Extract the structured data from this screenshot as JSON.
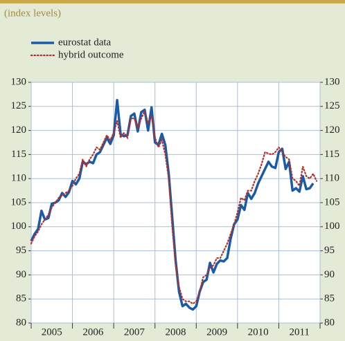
{
  "chart_data": {
    "type": "line",
    "subtitle": "(index levels)",
    "x": [
      2005,
      2005.083,
      2005.167,
      2005.25,
      2005.333,
      2005.417,
      2005.5,
      2005.583,
      2005.667,
      2005.75,
      2005.833,
      2005.917,
      2006,
      2006.083,
      2006.167,
      2006.25,
      2006.333,
      2006.417,
      2006.5,
      2006.583,
      2006.667,
      2006.75,
      2006.833,
      2006.917,
      2007,
      2007.083,
      2007.167,
      2007.25,
      2007.333,
      2007.417,
      2007.5,
      2007.583,
      2007.667,
      2007.75,
      2007.833,
      2007.917,
      2008,
      2008.083,
      2008.167,
      2008.25,
      2008.333,
      2008.417,
      2008.5,
      2008.583,
      2008.667,
      2008.75,
      2008.833,
      2008.917,
      2009,
      2009.083,
      2009.167,
      2009.25,
      2009.333,
      2009.417,
      2009.5,
      2009.583,
      2009.667,
      2009.75,
      2009.833,
      2009.917,
      2010,
      2010.083,
      2010.167,
      2010.25,
      2010.333,
      2010.417,
      2010.5,
      2010.583,
      2010.667,
      2010.75,
      2010.833,
      2010.917,
      2011,
      2011.083,
      2011.167,
      2011.25,
      2011.333,
      2011.417,
      2011.5,
      2011.583,
      2011.667,
      2011.75,
      2011.833,
      2011.917
    ],
    "series": [
      {
        "name": "eurostat data",
        "color": "#1a5aa6",
        "style": "solid",
        "values": [
          97,
          98.5,
          99.5,
          103.3,
          101.5,
          101.8,
          104.8,
          105,
          105.5,
          107,
          106.2,
          107.2,
          109.5,
          108.8,
          110,
          113.5,
          113,
          113.5,
          113.2,
          115,
          115.5,
          117,
          118.5,
          117.2,
          119,
          126.3,
          119.2,
          118.8,
          119,
          123,
          123.5,
          119.8,
          123.8,
          124.3,
          120,
          124.8,
          117.5,
          117,
          119.3,
          117,
          111,
          102,
          93,
          86.5,
          83.5,
          84,
          83.2,
          82.8,
          83.5,
          86.5,
          88.5,
          89,
          92.5,
          90.5,
          92.3,
          93,
          92.8,
          93.5,
          97.5,
          100.5,
          101.5,
          104.5,
          103.5,
          107,
          105.8,
          107,
          109,
          110.5,
          112,
          113.5,
          112.5,
          112.2,
          115.5,
          116.2,
          112,
          113.5,
          107.5,
          108,
          107.3,
          110.5,
          107.8,
          108,
          109,
          null
        ]
      },
      {
        "name": "hybrid outcome",
        "color": "#b5302a",
        "style": "dotted",
        "values": [
          96.5,
          98,
          99,
          100.5,
          101.5,
          102.5,
          104,
          105,
          106,
          106.5,
          107,
          107.5,
          108.5,
          110,
          111,
          114,
          112.5,
          114,
          115,
          116.5,
          116,
          117.5,
          119,
          118,
          119.5,
          122,
          118.5,
          119.5,
          118.5,
          122.5,
          122.5,
          120.5,
          122.5,
          124,
          121.5,
          123,
          118.5,
          116.5,
          118,
          115,
          110,
          100,
          92,
          87.5,
          85,
          84.5,
          84.5,
          84,
          84.5,
          86.5,
          89.5,
          90,
          91.5,
          92,
          93.5,
          93.5,
          95,
          96.5,
          98.5,
          100.5,
          103,
          106,
          105.5,
          107.5,
          107.5,
          109.5,
          111,
          113,
          115.5,
          115.2,
          115,
          115.5,
          116.5,
          115.5,
          114.5,
          114,
          110,
          109.5,
          108.5,
          112.5,
          110.5,
          110,
          111,
          109.5
        ]
      }
    ],
    "xlim": [
      2005,
      2012
    ],
    "xticks": [
      2005,
      2006,
      2007,
      2008,
      2009,
      2010,
      2011,
      2012
    ],
    "xtick_labels": [
      {
        "value": 2005.5,
        "label": "2005"
      },
      {
        "value": 2006.5,
        "label": "2006"
      },
      {
        "value": 2007.5,
        "label": "2007"
      },
      {
        "value": 2008.5,
        "label": "2008"
      },
      {
        "value": 2009.5,
        "label": "2009"
      },
      {
        "value": 2010.5,
        "label": "2010"
      },
      {
        "value": 2011.5,
        "label": "2011"
      }
    ],
    "ylim": [
      80,
      130
    ],
    "yticks": [
      80,
      85,
      90,
      95,
      100,
      105,
      110,
      115,
      120,
      125,
      130
    ],
    "y2lim": [
      80,
      130
    ],
    "y2ticks": [
      80,
      85,
      90,
      95,
      100,
      105,
      110,
      115,
      120,
      125,
      130
    ],
    "grid": true
  }
}
